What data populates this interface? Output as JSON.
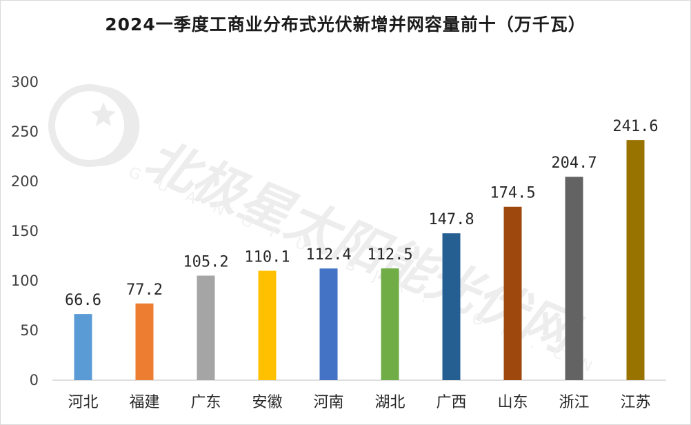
{
  "watermark": {
    "logo_name": "polaris-star-logo",
    "text": "北极星太阳能光伏网",
    "subtext": "GUANGFU.BJX.COM.CN"
  },
  "chart_data": {
    "type": "bar",
    "title": "2024一季度工商业分布式光伏新增并网容量前十（万千瓦）",
    "xlabel": "",
    "ylabel": "",
    "ylim": [
      0,
      300
    ],
    "yticks": [
      0,
      50,
      100,
      150,
      200,
      250,
      300
    ],
    "grid": false,
    "legend": "none",
    "categories": [
      "河北",
      "福建",
      "广东",
      "安徽",
      "河南",
      "湖北",
      "广西",
      "山东",
      "浙江",
      "江苏"
    ],
    "values": [
      66.6,
      77.2,
      105.2,
      110.1,
      112.4,
      112.5,
      147.8,
      174.5,
      204.7,
      241.6
    ],
    "colors": [
      "#5b9bd5",
      "#ed7d31",
      "#a5a5a5",
      "#ffc000",
      "#4472c4",
      "#70ad47",
      "#255e91",
      "#9e480e",
      "#636363",
      "#997300"
    ]
  }
}
